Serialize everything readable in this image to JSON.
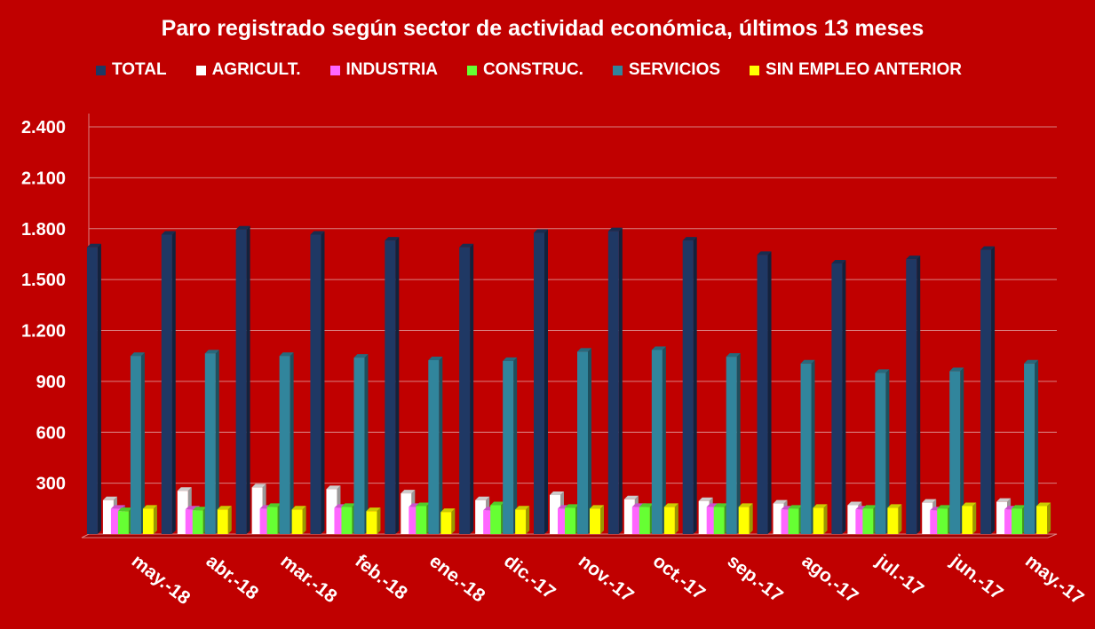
{
  "chart_data": {
    "type": "bar",
    "title": "Paro registrado según sector de actividad económica, últimos 13 meses",
    "xlabel": "",
    "ylabel": "",
    "categories": [
      "may.-18",
      "abr.-18",
      "mar.-18",
      "feb.-18",
      "ene.-18",
      "dic.-17",
      "nov.-17",
      "oct.-17",
      "sep.-17",
      "ago.-17",
      "jul.-17",
      "jun.-17",
      "may.-17"
    ],
    "y_ticks": [
      "2.400",
      "2.100",
      "1.800",
      "1.500",
      "1.200",
      "900",
      "600",
      "300"
    ],
    "ylim": [
      0,
      2400
    ],
    "grid": true,
    "legend_position": "top",
    "series": [
      {
        "name": "TOTAL",
        "color": "#1f3864",
        "values": [
          1690,
          1765,
          1795,
          1765,
          1730,
          1690,
          1775,
          1785,
          1730,
          1645,
          1595,
          1620,
          1675
        ]
      },
      {
        "name": "AGRICULT.",
        "color": "#ffffff",
        "values": [
          200,
          255,
          275,
          265,
          240,
          200,
          230,
          205,
          195,
          180,
          170,
          185,
          190
        ]
      },
      {
        "name": "INDUSTRIA",
        "color": "#ff66ff",
        "values": [
          150,
          145,
          150,
          155,
          160,
          140,
          150,
          160,
          160,
          145,
          145,
          140,
          145
        ]
      },
      {
        "name": "CONSTRUC.",
        "color": "#66ff33",
        "values": [
          135,
          140,
          160,
          160,
          165,
          170,
          155,
          160,
          160,
          150,
          150,
          150,
          150
        ]
      },
      {
        "name": "SERVICIOS",
        "color": "#31859c",
        "values": [
          1050,
          1065,
          1050,
          1040,
          1025,
          1020,
          1075,
          1085,
          1045,
          1005,
          950,
          960,
          1005
        ]
      },
      {
        "name": "SIN EMPLEO ANTERIOR",
        "color": "#ffff00",
        "values": [
          150,
          145,
          145,
          135,
          130,
          145,
          150,
          160,
          160,
          155,
          155,
          165,
          165
        ]
      }
    ]
  }
}
